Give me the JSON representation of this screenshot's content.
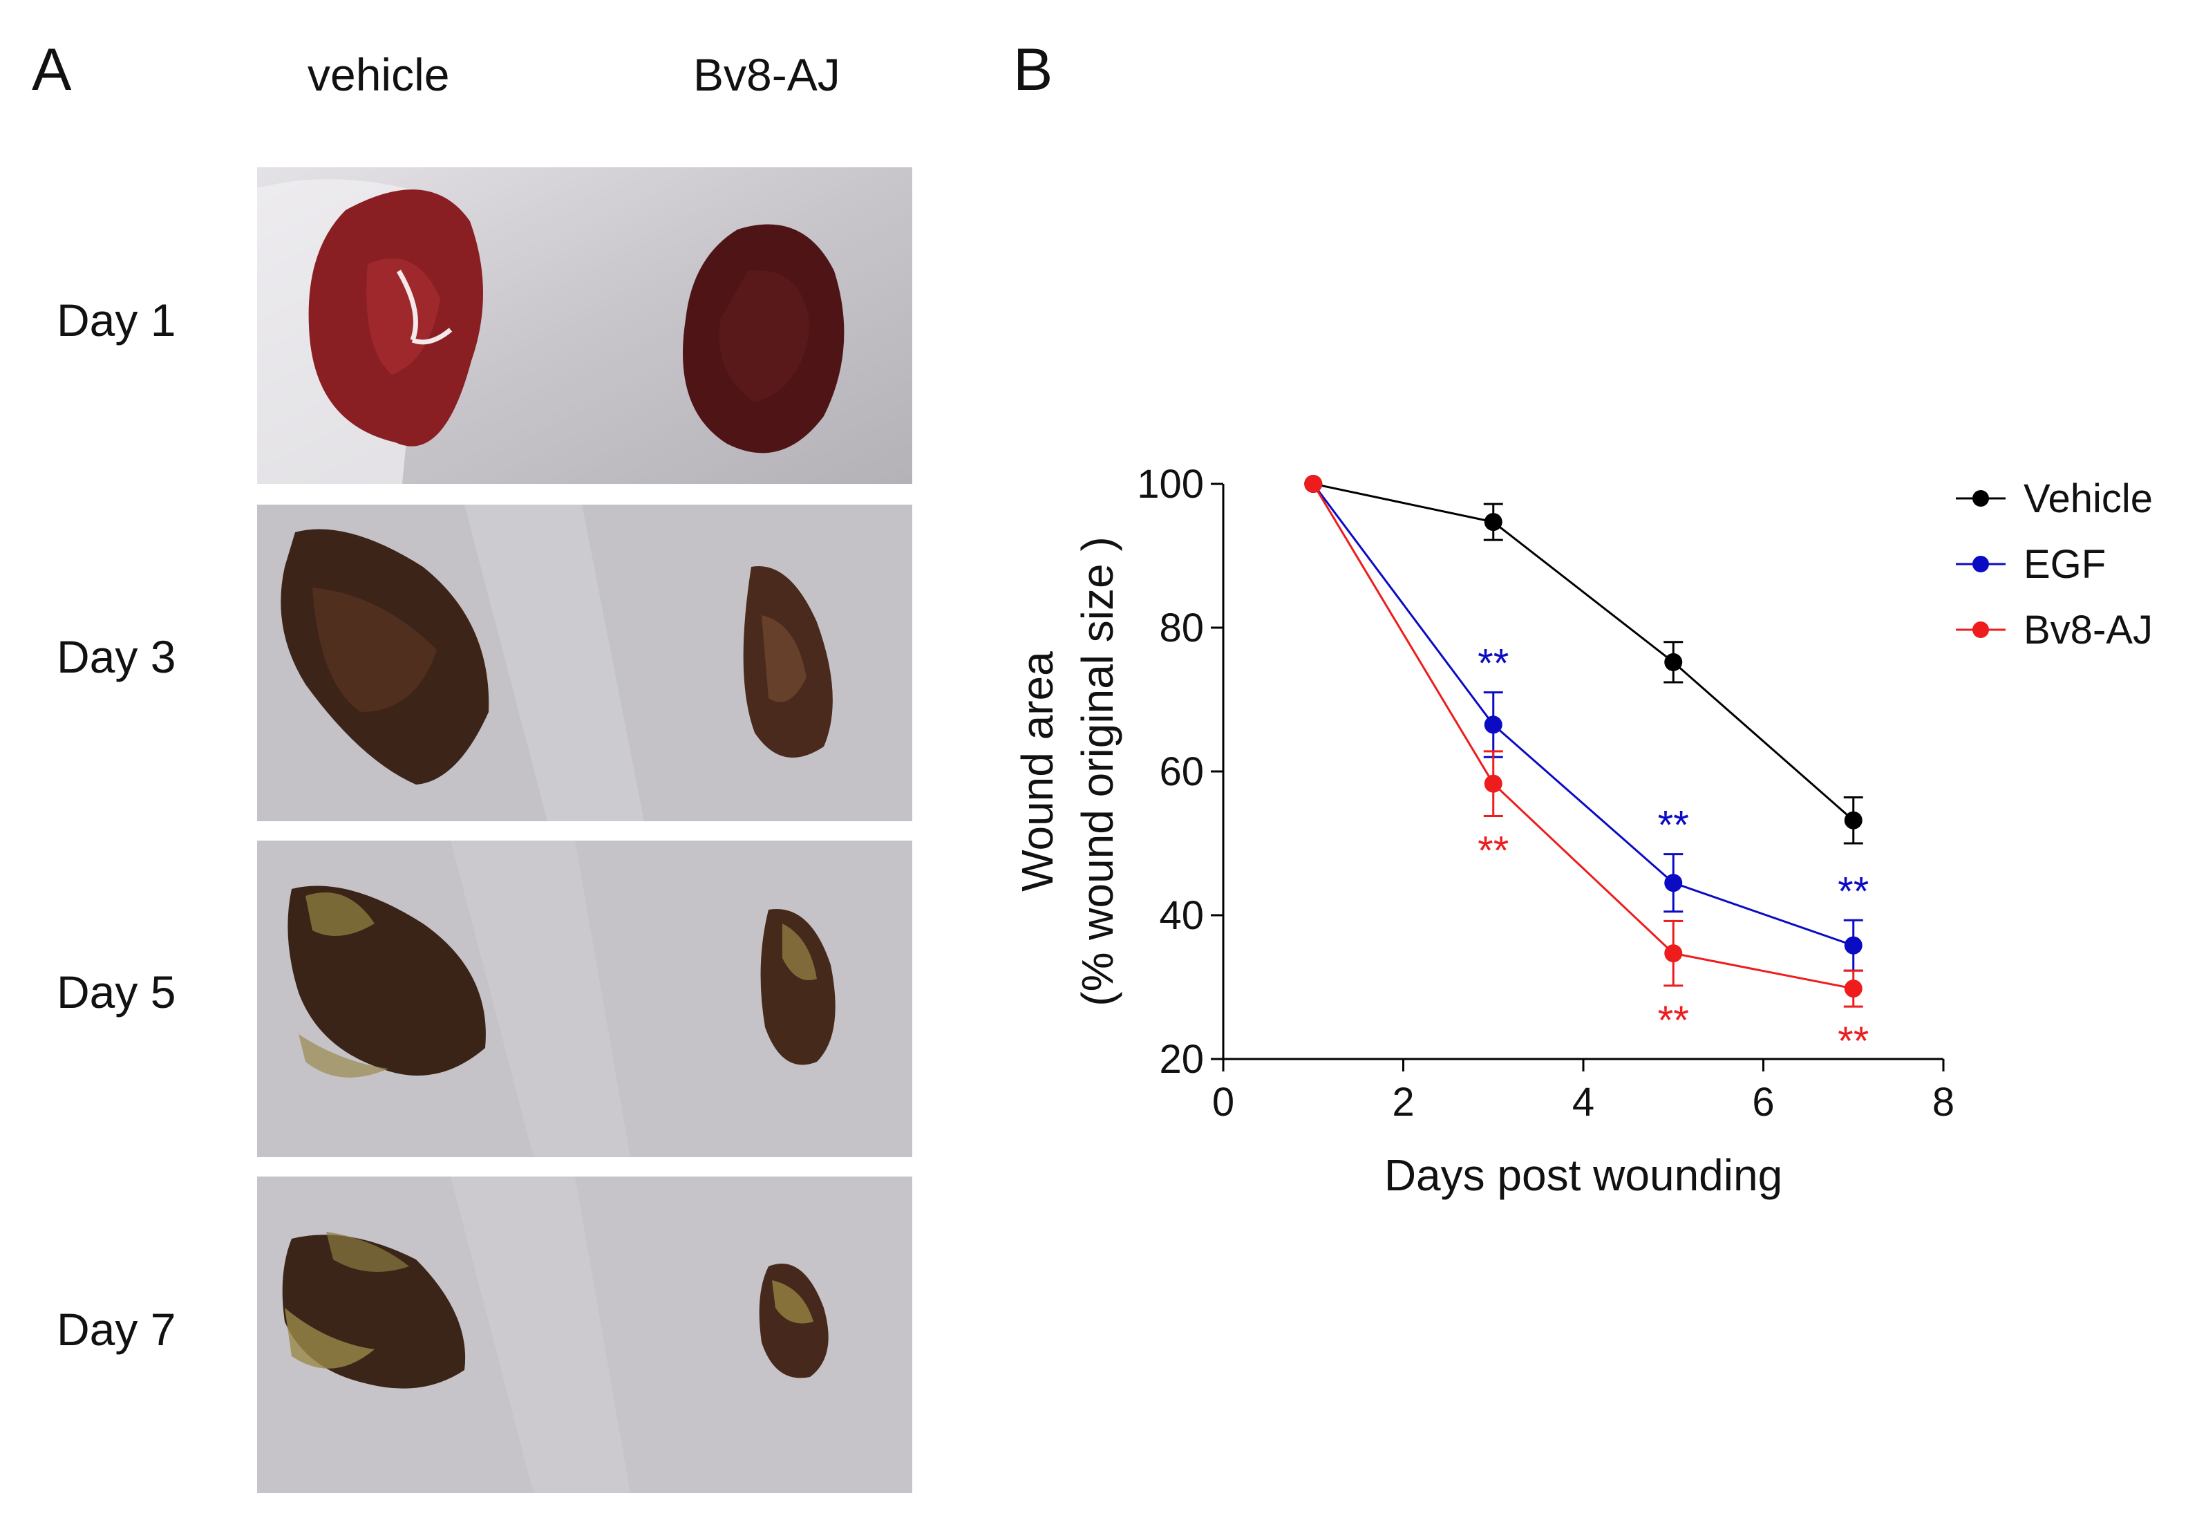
{
  "panel_a": {
    "letter": "A",
    "columns": [
      "vehicle",
      "Bv8-AJ"
    ],
    "rows": [
      "Day 1",
      "Day 3",
      "Day 5",
      "Day 7"
    ]
  },
  "panel_b": {
    "letter": "B"
  },
  "chart_data": {
    "type": "line",
    "xlabel": "Days post wounding",
    "ylabel": "Wound area",
    "ylabel2": "(% wound original size )",
    "xlim": [
      0,
      8
    ],
    "ylim": [
      20,
      100
    ],
    "xticks": [
      "0",
      "2",
      "4",
      "6",
      "8"
    ],
    "yticks": [
      "20",
      "40",
      "60",
      "80",
      "100"
    ],
    "grid": false,
    "legend_position": "top-right",
    "series": [
      {
        "name": "Vehicle",
        "color": "#000000",
        "x": [
          1,
          3,
          5,
          7
        ],
        "y": [
          100,
          94.7,
          75.2,
          53.2
        ],
        "err": [
          0,
          2.5,
          2.8,
          3.2
        ],
        "sig": [
          "",
          "",
          "",
          ""
        ]
      },
      {
        "name": "EGF",
        "color": "#0b0bc4",
        "x": [
          1,
          3,
          5,
          7
        ],
        "y": [
          100,
          66.5,
          44.5,
          35.8
        ],
        "err": [
          0,
          4.5,
          4.0,
          3.5
        ],
        "sig": [
          "",
          "**",
          "**",
          "**"
        ]
      },
      {
        "name": "Bv8-AJ",
        "color": "#ee1c1c",
        "x": [
          1,
          3,
          5,
          7
        ],
        "y": [
          100,
          58.3,
          34.7,
          29.8
        ],
        "err": [
          0,
          4.5,
          4.5,
          2.5
        ],
        "sig": [
          "",
          "**",
          "**",
          "**"
        ]
      }
    ]
  }
}
